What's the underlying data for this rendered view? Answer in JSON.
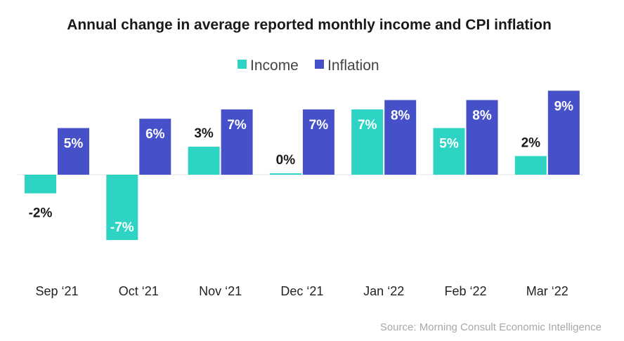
{
  "chart_data": {
    "type": "bar",
    "title": "Annual change in average reported monthly income and CPI inflation",
    "categories": [
      "Sep ‘21",
      "Oct ‘21",
      "Nov ‘21",
      "Dec ‘21",
      "Jan ‘22",
      "Feb ‘22",
      "Mar ‘22"
    ],
    "series": [
      {
        "name": "Income",
        "color": "#2dd4c4",
        "values": [
          -2,
          -7,
          3,
          0,
          7,
          5,
          2
        ],
        "labels": [
          "-2%",
          "-7%",
          "3%",
          "0%",
          "7%",
          "5%",
          "2%"
        ]
      },
      {
        "name": "Inflation",
        "color": "#4650c8",
        "values": [
          5,
          6,
          7,
          7,
          8,
          8,
          9
        ],
        "labels": [
          "5%",
          "6%",
          "7%",
          "7%",
          "8%",
          "8%",
          "9%"
        ]
      }
    ],
    "legend": "top-center",
    "grid": false,
    "ylim": [
      -8,
      9
    ],
    "source": "Source: Morning Consult Economic Intelligence"
  }
}
